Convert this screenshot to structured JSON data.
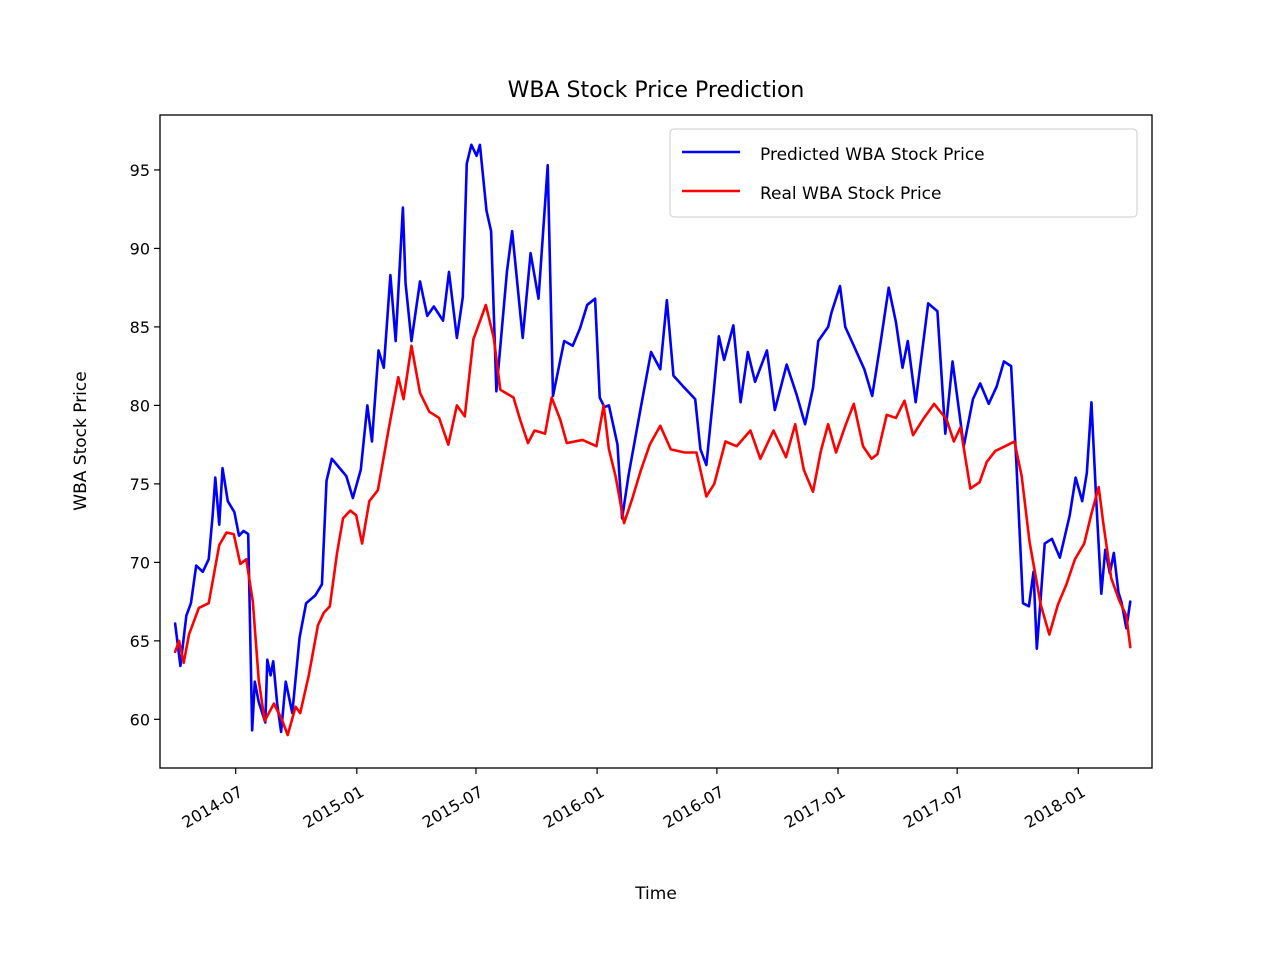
{
  "chart_data": {
    "type": "line",
    "title": "WBA Stock Price Prediction",
    "xlabel": "Time",
    "ylabel": "WBA Stock Price",
    "x_axis_type": "date",
    "xlim": [
      "2014-03-08",
      "2018-04-23"
    ],
    "ylim": [
      56.9,
      98.5
    ],
    "x_ticks": [
      "2014-07-01",
      "2015-01-01",
      "2015-07-01",
      "2016-01-01",
      "2016-07-01",
      "2017-01-01",
      "2017-07-01",
      "2018-01-01"
    ],
    "x_tick_labels": [
      "2014-07",
      "2015-01",
      "2015-07",
      "2016-01",
      "2016-07",
      "2017-01",
      "2017-07",
      "2018-01"
    ],
    "x_tick_rotation_deg": 30,
    "y_ticks": [
      60,
      65,
      70,
      75,
      80,
      85,
      90,
      95
    ],
    "y_tick_labels": [
      "60",
      "65",
      "70",
      "75",
      "80",
      "85",
      "90",
      "95"
    ],
    "grid": false,
    "legend_position": "top-right",
    "series": [
      {
        "name": "Predicted WBA Stock Price",
        "color": "#0000ff",
        "points": [
          [
            "2014-03-31",
            66.1
          ],
          [
            "2014-04-08",
            63.4
          ],
          [
            "2014-04-17",
            66.6
          ],
          [
            "2014-04-24",
            67.4
          ],
          [
            "2014-05-02",
            69.8
          ],
          [
            "2014-05-12",
            69.4
          ],
          [
            "2014-05-21",
            70.2
          ],
          [
            "2014-05-27",
            73.0
          ],
          [
            "2014-05-31",
            75.4
          ],
          [
            "2014-06-06",
            72.4
          ],
          [
            "2014-06-11",
            76.0
          ],
          [
            "2014-06-19",
            73.9
          ],
          [
            "2014-06-29",
            73.2
          ],
          [
            "2014-07-06",
            71.7
          ],
          [
            "2014-07-13",
            72.0
          ],
          [
            "2014-07-20",
            71.8
          ],
          [
            "2014-07-26",
            59.3
          ],
          [
            "2014-07-30",
            62.4
          ],
          [
            "2014-08-05",
            61.1
          ],
          [
            "2014-08-15",
            59.8
          ],
          [
            "2014-08-18",
            63.8
          ],
          [
            "2014-08-23",
            62.8
          ],
          [
            "2014-08-27",
            63.7
          ],
          [
            "2014-09-02",
            61.0
          ],
          [
            "2014-09-08",
            59.2
          ],
          [
            "2014-09-15",
            62.4
          ],
          [
            "2014-09-25",
            60.4
          ],
          [
            "2014-10-06",
            65.2
          ],
          [
            "2014-10-16",
            67.4
          ],
          [
            "2014-10-30",
            67.9
          ],
          [
            "2014-11-09",
            68.6
          ],
          [
            "2014-11-16",
            75.2
          ],
          [
            "2014-11-24",
            76.6
          ],
          [
            "2014-12-08",
            75.9
          ],
          [
            "2014-12-16",
            75.5
          ],
          [
            "2014-12-26",
            74.1
          ],
          [
            "2015-01-07",
            75.9
          ],
          [
            "2015-01-17",
            80.0
          ],
          [
            "2015-01-24",
            77.7
          ],
          [
            "2015-02-03",
            83.5
          ],
          [
            "2015-02-11",
            82.4
          ],
          [
            "2015-02-21",
            88.3
          ],
          [
            "2015-03-01",
            84.1
          ],
          [
            "2015-03-12",
            92.6
          ],
          [
            "2015-03-16",
            87.8
          ],
          [
            "2015-03-25",
            84.1
          ],
          [
            "2015-04-07",
            87.9
          ],
          [
            "2015-04-18",
            85.7
          ],
          [
            "2015-04-28",
            86.3
          ],
          [
            "2015-05-12",
            85.4
          ],
          [
            "2015-05-21",
            88.5
          ],
          [
            "2015-06-02",
            84.3
          ],
          [
            "2015-06-11",
            86.9
          ],
          [
            "2015-06-17",
            95.4
          ],
          [
            "2015-06-24",
            96.6
          ],
          [
            "2015-07-02",
            95.9
          ],
          [
            "2015-07-07",
            96.6
          ],
          [
            "2015-07-17",
            92.4
          ],
          [
            "2015-07-24",
            91.1
          ],
          [
            "2015-08-01",
            80.9
          ],
          [
            "2015-08-17",
            88.5
          ],
          [
            "2015-08-25",
            91.1
          ],
          [
            "2015-09-10",
            84.3
          ],
          [
            "2015-09-22",
            89.7
          ],
          [
            "2015-10-04",
            86.8
          ],
          [
            "2015-10-18",
            95.3
          ],
          [
            "2015-10-26",
            80.6
          ],
          [
            "2015-11-12",
            84.1
          ],
          [
            "2015-11-25",
            83.8
          ],
          [
            "2015-12-06",
            84.9
          ],
          [
            "2015-12-17",
            86.4
          ],
          [
            "2015-12-29",
            86.8
          ],
          [
            "2016-01-05",
            80.5
          ],
          [
            "2016-01-12",
            79.9
          ],
          [
            "2016-01-19",
            80.0
          ],
          [
            "2016-02-01",
            77.5
          ],
          [
            "2016-02-08",
            72.8
          ],
          [
            "2016-02-18",
            75.6
          ],
          [
            "2016-03-08",
            80.0
          ],
          [
            "2016-03-23",
            83.4
          ],
          [
            "2016-04-06",
            82.3
          ],
          [
            "2016-04-16",
            86.7
          ],
          [
            "2016-04-26",
            81.9
          ],
          [
            "2016-05-11",
            81.2
          ],
          [
            "2016-05-29",
            80.4
          ],
          [
            "2016-06-06",
            77.2
          ],
          [
            "2016-06-15",
            76.2
          ],
          [
            "2016-06-26",
            80.8
          ],
          [
            "2016-07-04",
            84.4
          ],
          [
            "2016-07-12",
            82.9
          ],
          [
            "2016-07-26",
            85.1
          ],
          [
            "2016-08-06",
            80.2
          ],
          [
            "2016-08-17",
            83.4
          ],
          [
            "2016-08-28",
            81.5
          ],
          [
            "2016-09-15",
            83.5
          ],
          [
            "2016-09-27",
            79.7
          ],
          [
            "2016-10-15",
            82.6
          ],
          [
            "2016-10-30",
            80.7
          ],
          [
            "2016-11-12",
            78.8
          ],
          [
            "2016-11-24",
            81.1
          ],
          [
            "2016-12-02",
            84.1
          ],
          [
            "2016-12-17",
            85.0
          ],
          [
            "2016-12-22",
            85.9
          ],
          [
            "2017-01-04",
            87.6
          ],
          [
            "2017-01-12",
            85.0
          ],
          [
            "2017-01-25",
            83.8
          ],
          [
            "2017-02-10",
            82.3
          ],
          [
            "2017-02-22",
            80.6
          ],
          [
            "2017-03-07",
            84.1
          ],
          [
            "2017-03-19",
            87.5
          ],
          [
            "2017-03-30",
            85.3
          ],
          [
            "2017-04-09",
            82.4
          ],
          [
            "2017-04-17",
            84.1
          ],
          [
            "2017-04-29",
            80.2
          ],
          [
            "2017-05-18",
            86.5
          ],
          [
            "2017-06-01",
            86.0
          ],
          [
            "2017-06-13",
            78.2
          ],
          [
            "2017-06-24",
            82.8
          ],
          [
            "2017-07-11",
            77.4
          ],
          [
            "2017-07-25",
            80.4
          ],
          [
            "2017-08-05",
            81.4
          ],
          [
            "2017-08-18",
            80.1
          ],
          [
            "2017-08-30",
            81.2
          ],
          [
            "2017-09-10",
            82.8
          ],
          [
            "2017-09-21",
            82.5
          ],
          [
            "2017-09-29",
            76.3
          ],
          [
            "2017-10-09",
            67.4
          ],
          [
            "2017-10-18",
            67.2
          ],
          [
            "2017-10-25",
            69.4
          ],
          [
            "2017-10-30",
            64.5
          ],
          [
            "2017-11-04",
            67.2
          ],
          [
            "2017-11-11",
            71.2
          ],
          [
            "2017-11-22",
            71.5
          ],
          [
            "2017-12-04",
            70.3
          ],
          [
            "2017-12-19",
            73.0
          ],
          [
            "2017-12-28",
            75.4
          ],
          [
            "2018-01-07",
            73.9
          ],
          [
            "2018-01-14",
            75.7
          ],
          [
            "2018-01-21",
            80.2
          ],
          [
            "2018-01-28",
            74.2
          ],
          [
            "2018-02-05",
            68.0
          ],
          [
            "2018-02-11",
            70.8
          ],
          [
            "2018-02-18",
            69.3
          ],
          [
            "2018-02-24",
            70.6
          ],
          [
            "2018-03-03",
            68.1
          ],
          [
            "2018-03-08",
            67.4
          ],
          [
            "2018-03-15",
            65.8
          ],
          [
            "2018-03-21",
            67.5
          ]
        ]
      },
      {
        "name": "Real WBA Stock Price",
        "color": "#ff0000",
        "points": [
          [
            "2014-03-31",
            64.3
          ],
          [
            "2014-04-06",
            65.0
          ],
          [
            "2014-04-13",
            63.6
          ],
          [
            "2014-04-21",
            65.4
          ],
          [
            "2014-05-06",
            67.1
          ],
          [
            "2014-05-21",
            67.4
          ],
          [
            "2014-06-06",
            71.1
          ],
          [
            "2014-06-17",
            71.9
          ],
          [
            "2014-06-28",
            71.8
          ],
          [
            "2014-07-08",
            69.9
          ],
          [
            "2014-07-17",
            70.2
          ],
          [
            "2014-07-27",
            67.5
          ],
          [
            "2014-08-05",
            62.5
          ],
          [
            "2014-08-14",
            59.9
          ],
          [
            "2014-08-28",
            61.0
          ],
          [
            "2014-09-09",
            60.0
          ],
          [
            "2014-09-18",
            59.0
          ],
          [
            "2014-09-30",
            60.8
          ],
          [
            "2014-10-07",
            60.4
          ],
          [
            "2014-10-20",
            62.8
          ],
          [
            "2014-11-03",
            66.0
          ],
          [
            "2014-11-12",
            66.8
          ],
          [
            "2014-11-21",
            67.2
          ],
          [
            "2014-12-02",
            70.6
          ],
          [
            "2014-12-11",
            72.8
          ],
          [
            "2014-12-22",
            73.3
          ],
          [
            "2014-12-31",
            73.0
          ],
          [
            "2015-01-09",
            71.2
          ],
          [
            "2015-01-20",
            73.9
          ],
          [
            "2015-02-02",
            74.6
          ],
          [
            "2015-02-18",
            78.4
          ],
          [
            "2015-03-05",
            81.8
          ],
          [
            "2015-03-13",
            80.4
          ],
          [
            "2015-03-25",
            83.8
          ],
          [
            "2015-04-07",
            80.8
          ],
          [
            "2015-04-21",
            79.6
          ],
          [
            "2015-05-06",
            79.2
          ],
          [
            "2015-05-20",
            77.5
          ],
          [
            "2015-06-02",
            80.0
          ],
          [
            "2015-06-14",
            79.3
          ],
          [
            "2015-06-27",
            84.2
          ],
          [
            "2015-07-16",
            86.4
          ],
          [
            "2015-07-28",
            84.3
          ],
          [
            "2015-08-07",
            81.0
          ],
          [
            "2015-08-27",
            80.5
          ],
          [
            "2015-09-06",
            79.1
          ],
          [
            "2015-09-18",
            77.6
          ],
          [
            "2015-09-28",
            78.4
          ],
          [
            "2015-10-14",
            78.2
          ],
          [
            "2015-10-24",
            80.5
          ],
          [
            "2015-11-06",
            79.1
          ],
          [
            "2015-11-16",
            77.6
          ],
          [
            "2015-12-10",
            77.8
          ],
          [
            "2015-12-31",
            77.4
          ],
          [
            "2016-01-11",
            80.0
          ],
          [
            "2016-01-19",
            77.2
          ],
          [
            "2016-01-29",
            75.5
          ],
          [
            "2016-02-11",
            72.5
          ],
          [
            "2016-02-23",
            74.0
          ],
          [
            "2016-03-07",
            75.8
          ],
          [
            "2016-03-21",
            77.5
          ],
          [
            "2016-04-06",
            78.7
          ],
          [
            "2016-04-22",
            77.2
          ],
          [
            "2016-05-13",
            77.0
          ],
          [
            "2016-05-31",
            77.0
          ],
          [
            "2016-06-15",
            74.2
          ],
          [
            "2016-06-27",
            75.0
          ],
          [
            "2016-07-14",
            77.7
          ],
          [
            "2016-07-31",
            77.4
          ],
          [
            "2016-08-21",
            78.4
          ],
          [
            "2016-09-05",
            76.6
          ],
          [
            "2016-09-25",
            78.4
          ],
          [
            "2016-10-14",
            76.7
          ],
          [
            "2016-10-28",
            78.8
          ],
          [
            "2016-11-10",
            75.9
          ],
          [
            "2016-11-24",
            74.5
          ],
          [
            "2016-12-06",
            77.1
          ],
          [
            "2016-12-17",
            78.8
          ],
          [
            "2016-12-29",
            77.0
          ],
          [
            "2017-01-13",
            78.8
          ],
          [
            "2017-01-25",
            80.1
          ],
          [
            "2017-02-08",
            77.4
          ],
          [
            "2017-02-21",
            76.6
          ],
          [
            "2017-03-02",
            76.9
          ],
          [
            "2017-03-16",
            79.4
          ],
          [
            "2017-03-30",
            79.2
          ],
          [
            "2017-04-12",
            80.3
          ],
          [
            "2017-04-25",
            78.1
          ],
          [
            "2017-05-10",
            79.1
          ],
          [
            "2017-05-27",
            80.1
          ],
          [
            "2017-06-15",
            79.1
          ],
          [
            "2017-06-26",
            77.7
          ],
          [
            "2017-07-06",
            78.6
          ],
          [
            "2017-07-21",
            74.7
          ],
          [
            "2017-08-04",
            75.1
          ],
          [
            "2017-08-15",
            76.4
          ],
          [
            "2017-08-28",
            77.1
          ],
          [
            "2017-09-12",
            77.4
          ],
          [
            "2017-09-26",
            77.7
          ],
          [
            "2017-10-07",
            75.5
          ],
          [
            "2017-10-19",
            71.3
          ],
          [
            "2017-11-05",
            67.3
          ],
          [
            "2017-11-18",
            65.4
          ],
          [
            "2017-12-01",
            67.3
          ],
          [
            "2017-12-14",
            68.6
          ],
          [
            "2017-12-27",
            70.2
          ],
          [
            "2018-01-10",
            71.2
          ],
          [
            "2018-01-21",
            73.1
          ],
          [
            "2018-02-01",
            74.8
          ],
          [
            "2018-02-08",
            72.5
          ],
          [
            "2018-02-20",
            69.0
          ],
          [
            "2018-03-04",
            67.6
          ],
          [
            "2018-03-15",
            66.6
          ],
          [
            "2018-03-21",
            64.6
          ]
        ]
      }
    ]
  }
}
